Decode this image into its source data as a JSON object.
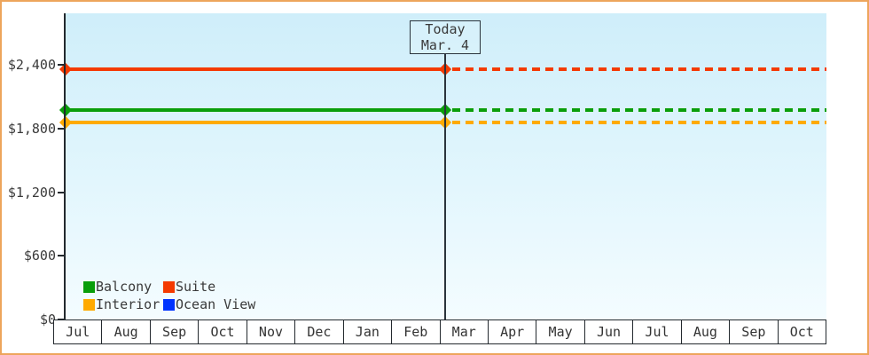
{
  "window": {
    "border_color": "#eda55c",
    "background": "#ffffff"
  },
  "chart_data": {
    "type": "line",
    "title": "",
    "x_categories": [
      "Jul",
      "Aug",
      "Sep",
      "Oct",
      "Nov",
      "Dec",
      "Jan",
      "Feb",
      "Mar",
      "Apr",
      "May",
      "Jun",
      "Jul",
      "Aug",
      "Sep",
      "Oct"
    ],
    "y_ticks": [
      {
        "label": "$0",
        "value": 0
      },
      {
        "label": "$600",
        "value": 600
      },
      {
        "label": "$1,200",
        "value": 1200
      },
      {
        "label": "$1,800",
        "value": 1800
      },
      {
        "label": "$2,400",
        "value": 2400
      }
    ],
    "ylim": [
      0,
      2880
    ],
    "today": {
      "line1": "Today",
      "line2": "Mar. 4",
      "category_index": 8
    },
    "series": [
      {
        "name": "Balcony",
        "color": "#0a9e0a",
        "value": 1975
      },
      {
        "name": "Suite",
        "color": "#f43a00",
        "value": 2360
      },
      {
        "name": "Interior",
        "color": "#ffaa00",
        "value": 1855
      },
      {
        "name": "Ocean View",
        "color": "#0033ff",
        "value": null
      }
    ],
    "legend_position": "bottom-left",
    "grid": false,
    "style_notes": "lines solid left of today, dashed right of today, diamond markers at series start and at today"
  },
  "colors": {
    "plot_bg_top": "#cfeefa",
    "plot_bg_bottom": "#f4fcff",
    "axis": "#23292e",
    "text": "#3a3a3a"
  }
}
